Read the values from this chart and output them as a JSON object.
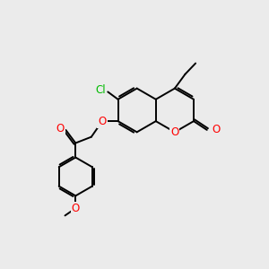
{
  "background_color": "#ebebeb",
  "bond_color": "#000000",
  "bond_width": 1.4,
  "atom_colors": {
    "O": "#ff0000",
    "Cl": "#00bb00",
    "C": "#000000"
  },
  "font_size": 8.5,
  "fig_size": [
    3.0,
    3.0
  ],
  "dpi": 100
}
